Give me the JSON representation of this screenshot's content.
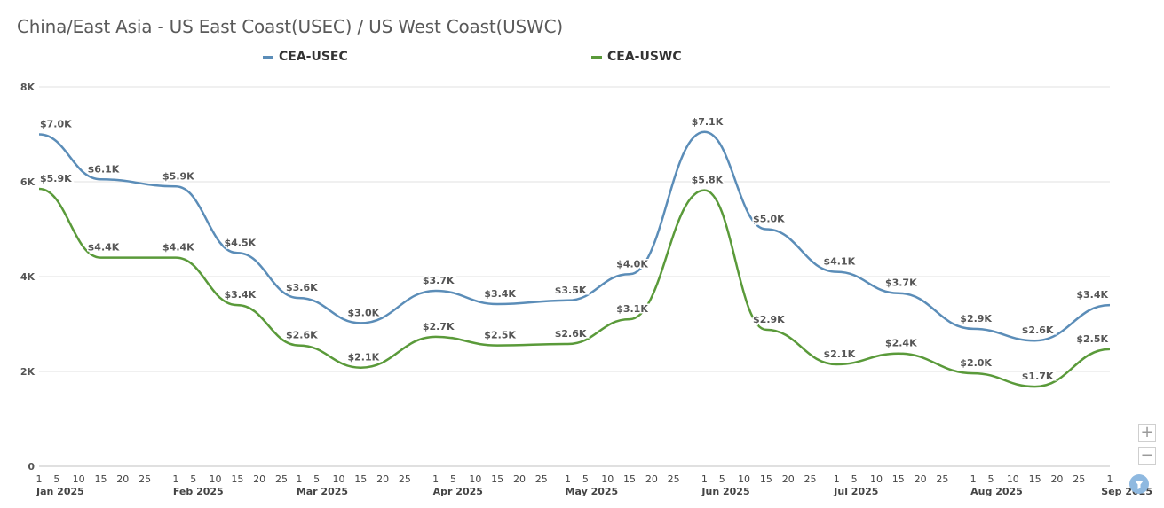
{
  "chart_data": {
    "type": "line",
    "title": "China/East Asia - US East Coast(USEC) / US West Coast(USWC)",
    "xlabel": "",
    "ylabel": "",
    "x": [
      "2025-01-01",
      "2025-01-15",
      "2025-02-01",
      "2025-02-15",
      "2025-03-01",
      "2025-03-15",
      "2025-04-01",
      "2025-04-15",
      "2025-05-01",
      "2025-05-15",
      "2025-06-01",
      "2025-06-15",
      "2025-07-01",
      "2025-07-15",
      "2025-08-01",
      "2025-08-15",
      "2025-09-01"
    ],
    "series": [
      {
        "name": "CEA-USEC",
        "color": "#5b8db8",
        "values": [
          7000,
          6050,
          5900,
          4500,
          3550,
          3020,
          3700,
          3420,
          3500,
          4050,
          7050,
          5000,
          4100,
          3650,
          2900,
          2650,
          3400
        ],
        "labels": [
          "$7.0K",
          "$6.1K",
          "$5.9K",
          "$4.5K",
          "$3.6K",
          "$3.0K",
          "$3.7K",
          "$3.4K",
          "$3.5K",
          "$4.0K",
          "$7.1K",
          "$5.0K",
          "$4.1K",
          "$3.7K",
          "$2.9K",
          "$2.6K",
          "$3.4K"
        ]
      },
      {
        "name": "CEA-USWC",
        "color": "#5a9a3a",
        "values": [
          5850,
          4400,
          4400,
          3400,
          2550,
          2080,
          2730,
          2550,
          2580,
          3100,
          5820,
          2880,
          2150,
          2380,
          1960,
          1680,
          2470
        ],
        "labels": [
          "$5.9K",
          "$4.4K",
          "$4.4K",
          "$3.4K",
          "$2.6K",
          "$2.1K",
          "$2.7K",
          "$2.5K",
          "$2.6K",
          "$3.1K",
          "$5.8K",
          "$2.9K",
          "$2.1K",
          "$2.4K",
          "$2.0K",
          "$1.7K",
          "$2.5K"
        ]
      }
    ],
    "ylim": [
      0,
      8000
    ],
    "y_ticks": [
      0,
      2000,
      4000,
      6000,
      8000
    ],
    "y_tick_labels": [
      "0",
      "2K",
      "4K",
      "6K",
      "8K"
    ],
    "x_day_ticks": [
      "1",
      "5",
      "10",
      "15",
      "20",
      "25"
    ],
    "months": [
      {
        "label": "Jan 2025",
        "start": "2025-01-01",
        "days": 31
      },
      {
        "label": "Feb 2025",
        "start": "2025-02-01",
        "days": 28
      },
      {
        "label": "Mar 2025",
        "start": "2025-03-01",
        "days": 31
      },
      {
        "label": "Apr 2025",
        "start": "2025-04-01",
        "days": 30
      },
      {
        "label": "May 2025",
        "start": "2025-05-01",
        "days": 31
      },
      {
        "label": "Jun 2025",
        "start": "2025-06-01",
        "days": 30
      },
      {
        "label": "Jul 2025",
        "start": "2025-07-01",
        "days": 31
      },
      {
        "label": "Aug 2025",
        "start": "2025-08-01",
        "days": 31
      },
      {
        "label": "Sep 2025",
        "start": "2025-09-01",
        "days": 1
      }
    ],
    "grid": true,
    "legend_position": "top"
  },
  "controls": {
    "zoom_in": "+",
    "zoom_out": "−",
    "filter_icon": "funnel-icon"
  }
}
